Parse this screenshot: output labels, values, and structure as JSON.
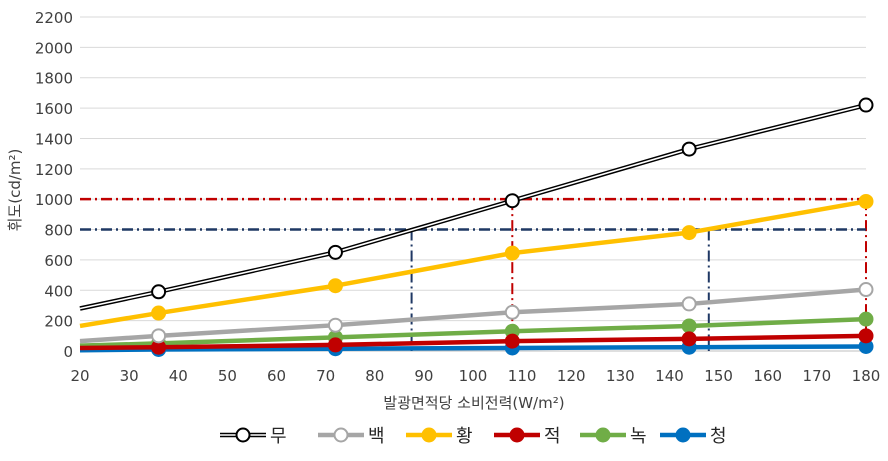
{
  "chart_data": {
    "type": "line",
    "title": "",
    "xlabel": "발광면적당 소비전력(W/m²)",
    "ylabel": "휘도(cd/m²)",
    "xlim": [
      20,
      180
    ],
    "ylim": [
      0,
      2200
    ],
    "x_ticks": [
      "20",
      "30",
      "40",
      "50",
      "60",
      "70",
      "80",
      "90",
      "100",
      "110",
      "120",
      "130",
      "140",
      "150",
      "160",
      "170",
      "180"
    ],
    "y_ticks": [
      "0",
      "200",
      "400",
      "600",
      "800",
      "1000",
      "1200",
      "1400",
      "1600",
      "1800",
      "2000",
      "2200"
    ],
    "grid": "horizontal",
    "legend_position": "bottom",
    "series": [
      {
        "name": "무",
        "color": "#000000",
        "marker_fill": "#ffffff",
        "style": "double",
        "x": [
          20,
          36,
          72,
          108,
          144,
          180
        ],
        "y": [
          280,
          390,
          650,
          990,
          1330,
          1620
        ],
        "markers": [
          36,
          72,
          108,
          144,
          180
        ]
      },
      {
        "name": "백",
        "color": "#a6a6a6",
        "marker_fill": "#ffffff",
        "x": [
          20,
          36,
          72,
          108,
          144,
          180
        ],
        "y": [
          65,
          100,
          170,
          255,
          310,
          405
        ],
        "markers": [
          36,
          72,
          108,
          144,
          180
        ]
      },
      {
        "name": "황",
        "color": "#ffc000",
        "marker_fill": "#ffc000",
        "x": [
          20,
          36,
          72,
          108,
          144,
          180
        ],
        "y": [
          165,
          250,
          430,
          645,
          780,
          985
        ],
        "markers": [
          36,
          72,
          108,
          144,
          180
        ]
      },
      {
        "name": "적",
        "color": "#c00000",
        "marker_fill": "#c00000",
        "x": [
          20,
          36,
          72,
          108,
          144,
          180
        ],
        "y": [
          20,
          25,
          40,
          65,
          80,
          100
        ],
        "markers": [
          36,
          72,
          108,
          144,
          180
        ]
      },
      {
        "name": "녹",
        "color": "#70ad47",
        "marker_fill": "#70ad47",
        "x": [
          20,
          36,
          72,
          108,
          144,
          180
        ],
        "y": [
          35,
          50,
          90,
          130,
          165,
          210
        ],
        "markers": [
          36,
          72,
          108,
          144,
          180
        ]
      },
      {
        "name": "청",
        "color": "#0070c0",
        "marker_fill": "#0070c0",
        "x": [
          20,
          36,
          72,
          108,
          144,
          180
        ],
        "y": [
          5,
          10,
          15,
          20,
          25,
          30
        ],
        "markers": [
          36,
          72,
          108,
          144,
          180
        ]
      }
    ],
    "reference_lines": [
      {
        "color": "#c00000",
        "y": 1000,
        "x_from": 20,
        "x_to": 180,
        "drops": [
          108,
          180
        ]
      },
      {
        "color": "#1f3864",
        "y": 800,
        "x_from": 20,
        "x_to": 180,
        "drops": [
          87.5,
          148
        ]
      }
    ]
  }
}
